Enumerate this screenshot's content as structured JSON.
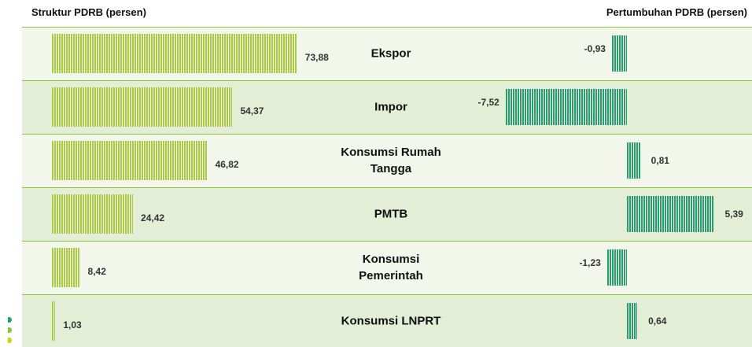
{
  "chart_data": {
    "type": "bar",
    "categories": [
      "Ekspor",
      "Impor",
      "Konsumsi Rumah Tangga",
      "PMTB",
      "Konsumsi Pemerintah",
      "Konsumsi LNPRT"
    ],
    "series": [
      {
        "name": "Struktur PDRB (persen)",
        "color": "#a6d03a",
        "values": [
          73.88,
          54.37,
          46.82,
          24.42,
          8.42,
          1.03
        ],
        "value_labels": [
          "73,88",
          "54,37",
          "46,82",
          "24,42",
          "8,42",
          "1,03"
        ]
      },
      {
        "name": "Pertumbuhan PDRB (persen)",
        "color": "#1fa463",
        "values": [
          -0.93,
          -7.52,
          0.81,
          5.39,
          -1.23,
          0.64
        ],
        "value_labels": [
          "-0,93",
          "-7,52",
          "0,81",
          "5,39",
          "-1,23",
          "0,64"
        ]
      }
    ]
  }
}
